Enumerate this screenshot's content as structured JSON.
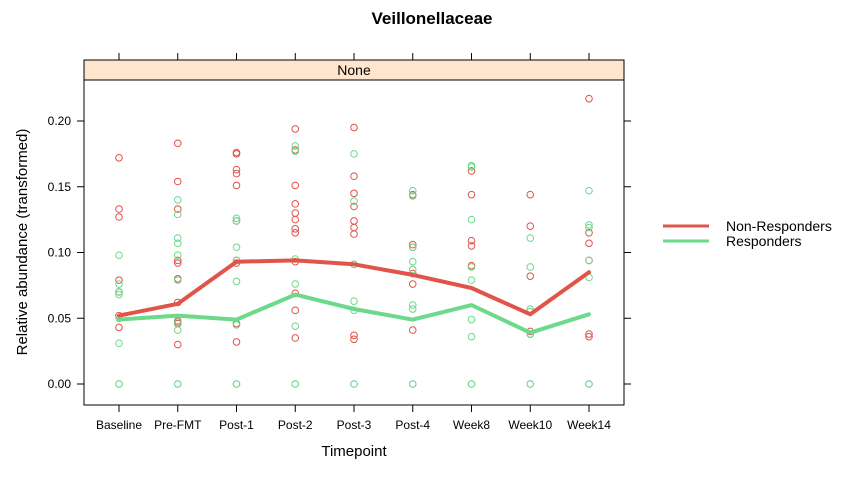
{
  "chart_data": {
    "type": "scatter",
    "title": "Veillonellaceae",
    "panel_label": "None",
    "xlabel": "Timepoint",
    "ylabel": "Relative abundance (transformed)",
    "categories": [
      "Baseline",
      "Pre-FMT",
      "Post-1",
      "Post-2",
      "Post-3",
      "Post-4",
      "Week8",
      "Week10",
      "Week14"
    ],
    "ylim": [
      -0.015,
      0.23
    ],
    "yticks": [
      0.0,
      0.05,
      0.1,
      0.15,
      0.2
    ],
    "ytick_labels": [
      "0.00",
      "0.05",
      "0.10",
      "0.15",
      "0.20"
    ],
    "grid": false,
    "legend_position": "right",
    "series": [
      {
        "name": "Non-Responders",
        "color": "#e0544a",
        "line": [
          0.052,
          0.061,
          0.093,
          0.094,
          0.091,
          0.083,
          0.073,
          0.053,
          0.085
        ],
        "points": [
          [
            0.172,
            0.133,
            0.127,
            0.079,
            0.07,
            0.052,
            0.043
          ],
          [
            0.183,
            0.154,
            0.133,
            0.094,
            0.092,
            0.08,
            0.062,
            0.048,
            0.046,
            0.03
          ],
          [
            0.176,
            0.175,
            0.163,
            0.16,
            0.151,
            0.124,
            0.094,
            0.092,
            0.046,
            0.032
          ],
          [
            0.194,
            0.178,
            0.151,
            0.137,
            0.13,
            0.125,
            0.118,
            0.115,
            0.093,
            0.069,
            0.056,
            0.035
          ],
          [
            0.195,
            0.158,
            0.145,
            0.135,
            0.124,
            0.119,
            0.114,
            0.091,
            0.037,
            0.034
          ],
          [
            0.144,
            0.106,
            0.104,
            0.084,
            0.076,
            0.041
          ],
          [
            0.162,
            0.144,
            0.109,
            0.105,
            0.09
          ],
          [
            0.144,
            0.12,
            0.082,
            0.04,
            0.038
          ],
          [
            0.217,
            0.115,
            0.107,
            0.094,
            0.038,
            0.036
          ]
        ]
      },
      {
        "name": "Responders",
        "color": "#6cd98b",
        "line": [
          0.049,
          0.052,
          0.049,
          0.068,
          0.057,
          0.049,
          0.06,
          0.039,
          0.053
        ],
        "points": [
          [
            0.098,
            0.076,
            0.07,
            0.068,
            0.05,
            0.031,
            0.0,
            0.0
          ],
          [
            0.14,
            0.129,
            0.111,
            0.107,
            0.098,
            0.079,
            0.047,
            0.041,
            0.0,
            0.0
          ],
          [
            0.126,
            0.124,
            0.104,
            0.094,
            0.078,
            0.045,
            0.0,
            0.0
          ],
          [
            0.181,
            0.177,
            0.095,
            0.076,
            0.044,
            0.0,
            0.0
          ],
          [
            0.175,
            0.139,
            0.091,
            0.063,
            0.056,
            0.0,
            0.0
          ],
          [
            0.147,
            0.143,
            0.104,
            0.093,
            0.087,
            0.06,
            0.057,
            0.0,
            0.0
          ],
          [
            0.166,
            0.165,
            0.125,
            0.089,
            0.079,
            0.049,
            0.036,
            0.0,
            0.0
          ],
          [
            0.111,
            0.089,
            0.057,
            0.055,
            0.038,
            0.0,
            0.0
          ],
          [
            0.147,
            0.121,
            0.119,
            0.094,
            0.081,
            0.0,
            0.0
          ]
        ]
      }
    ]
  },
  "colors": {
    "strip_background": "#ffe5cc",
    "frame": "#000000"
  }
}
